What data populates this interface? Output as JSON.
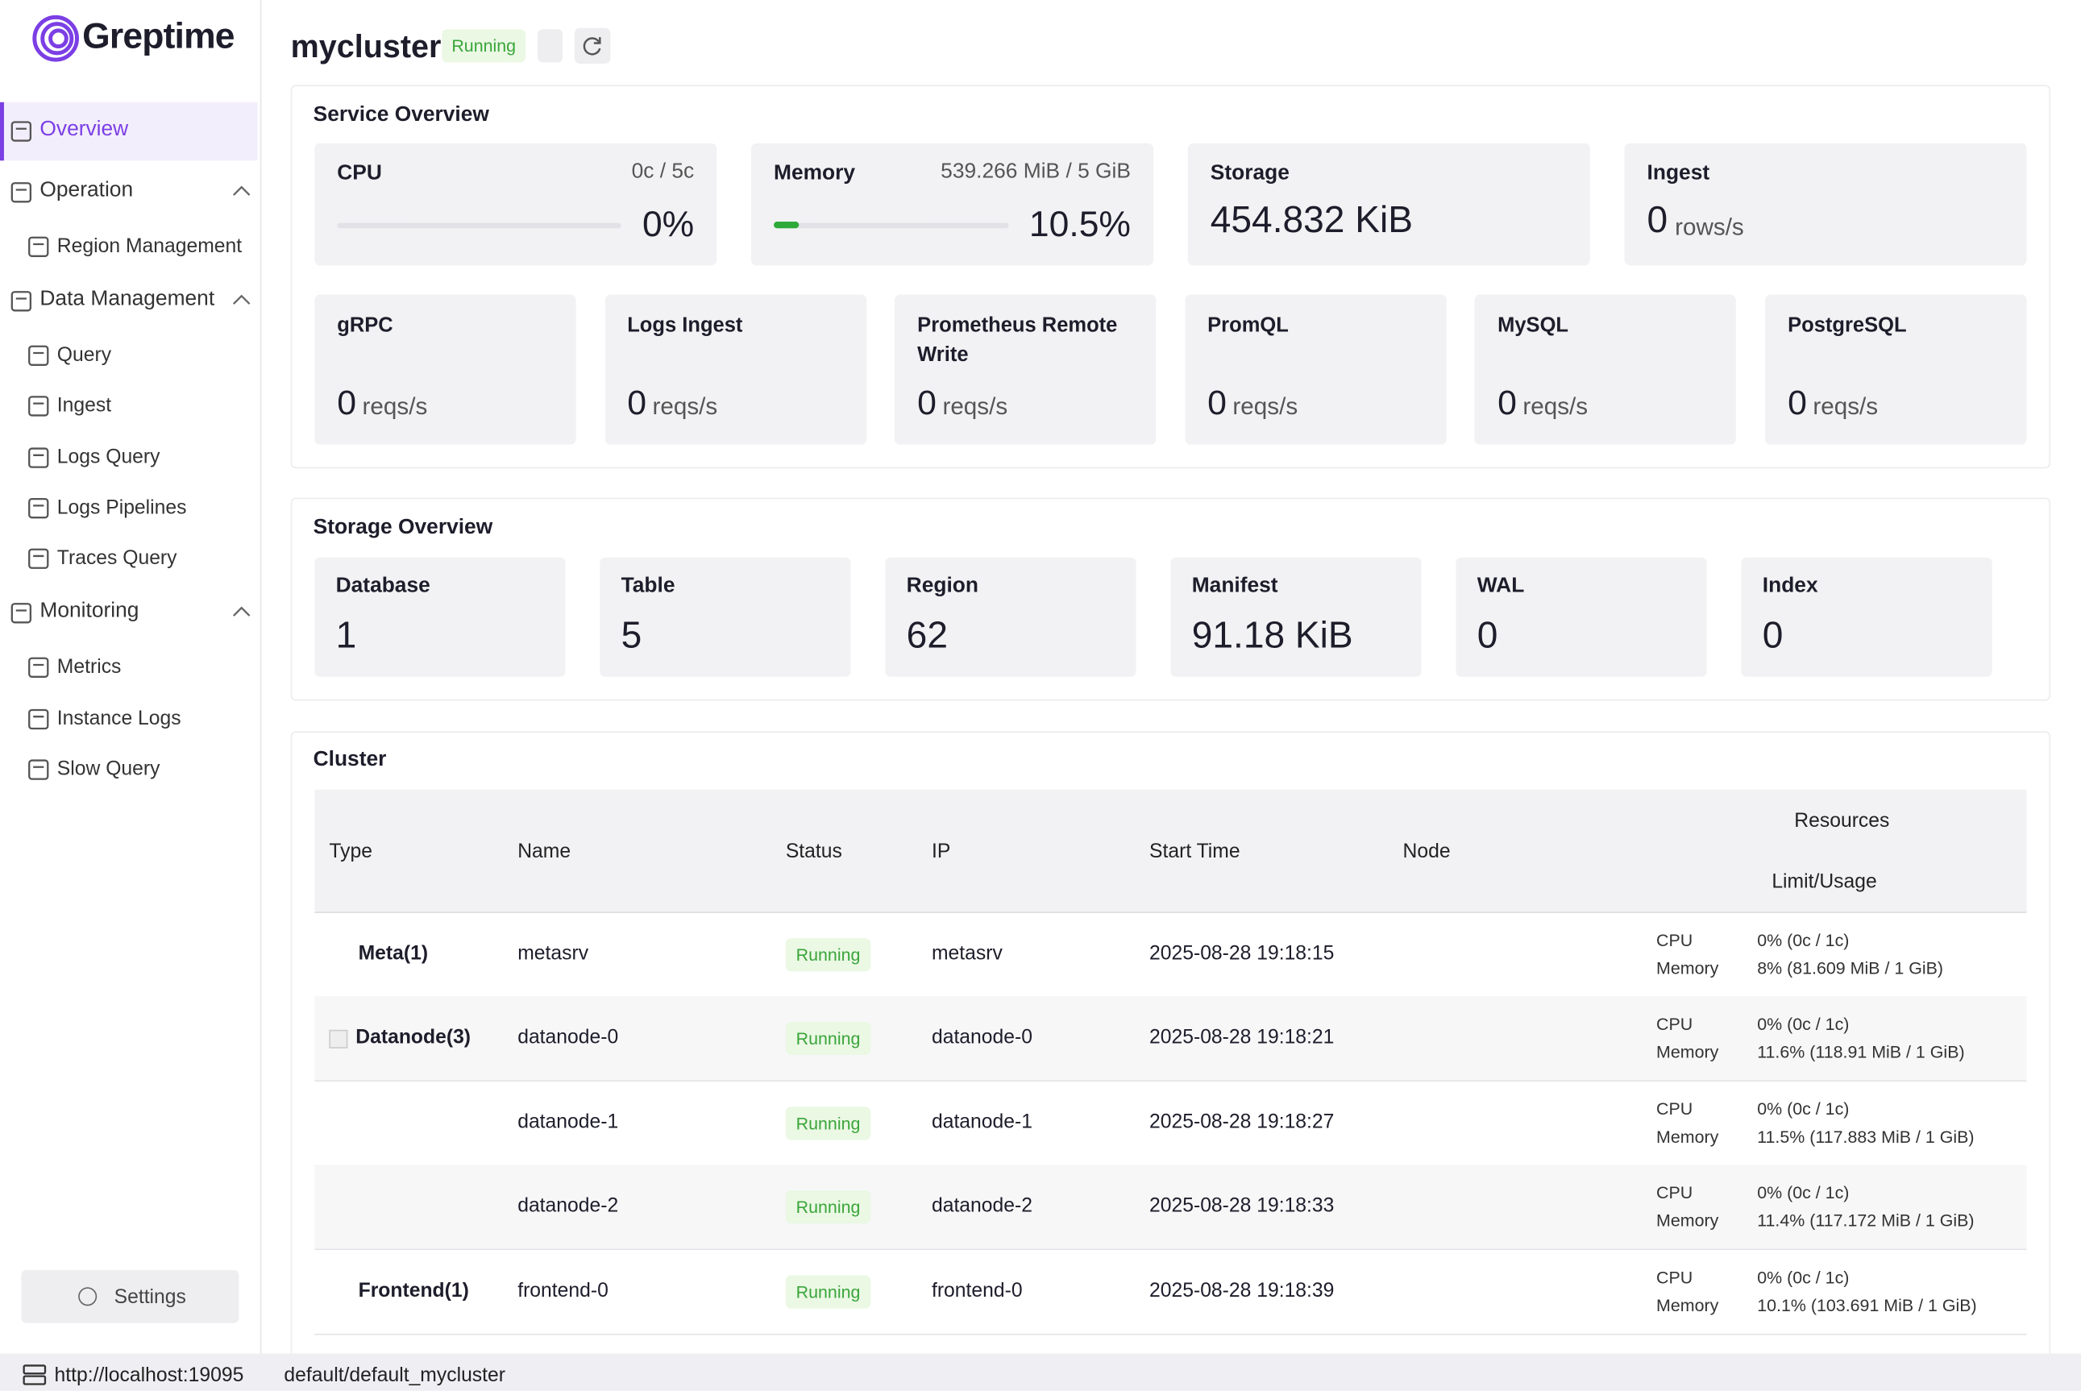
{
  "sidebar": {
    "logo": "Greptime",
    "nav": [
      {
        "label": "Overview",
        "active": true
      },
      {
        "label": "Operation",
        "children": [
          "Region Management"
        ]
      },
      {
        "label": "Data Management",
        "children": [
          "Query",
          "Ingest",
          "Logs Query",
          "Logs Pipelines",
          "Traces Query"
        ]
      },
      {
        "label": "Monitoring",
        "children": [
          "Metrics",
          "Instance Logs",
          "Slow Query"
        ]
      }
    ],
    "settings": "Settings"
  },
  "header": {
    "title": "mycluster",
    "status": "Running"
  },
  "service_overview": {
    "title": "Service Overview",
    "cards": [
      {
        "label": "CPU",
        "detail": "0c / 5c",
        "value": 0,
        "value_label": "0%"
      },
      {
        "label": "Memory",
        "detail": "539.266 MiB / 5 GiB",
        "value": 10.5,
        "value_label": "10.5%"
      },
      {
        "label": "Storage",
        "value": "454.832 KiB"
      },
      {
        "label": "Ingest",
        "value": "0",
        "unit": "rows/s"
      }
    ],
    "protocols": [
      {
        "label": "gRPC",
        "value": "0",
        "unit": "reqs/s"
      },
      {
        "label": "Logs Ingest",
        "value": "0",
        "unit": "reqs/s"
      },
      {
        "label": "Prometheus Remote Write",
        "value": "0",
        "unit": "reqs/s"
      },
      {
        "label": "PromQL",
        "value": "0",
        "unit": "reqs/s"
      },
      {
        "label": "MySQL",
        "value": "0",
        "unit": "reqs/s"
      },
      {
        "label": "PostgreSQL",
        "value": "0",
        "unit": "reqs/s"
      }
    ]
  },
  "storage_overview": {
    "title": "Storage Overview",
    "cards": [
      {
        "label": "Database",
        "value": "1"
      },
      {
        "label": "Table",
        "value": "5"
      },
      {
        "label": "Region",
        "value": "62"
      },
      {
        "label": "Manifest",
        "value": "91.18 KiB"
      },
      {
        "label": "WAL",
        "value": "0"
      },
      {
        "label": "Index",
        "value": "0"
      }
    ]
  },
  "cluster": {
    "title": "Cluster",
    "columns": [
      "Type",
      "Name",
      "Status",
      "IP",
      "Start Time",
      "Node"
    ],
    "resources": "Resources",
    "resources_sub": "Limit/Usage",
    "rows": [
      {
        "type": "Meta(1)",
        "name": "metasrv",
        "status": "Running",
        "ip": "metasrv",
        "start_time": "2025-08-28 19:18:15",
        "cpu_label": "CPU",
        "cpu": "0% (0c / 1c)",
        "memory_label": "Memory",
        "memory": "8% (81.609 MiB / 1 GiB)"
      },
      {
        "type": "Datanode(3)",
        "name": "datanode-0",
        "status": "Running",
        "ip": "datanode-0",
        "start_time": "2025-08-28 19:18:21",
        "cpu_label": "CPU",
        "cpu": "0% (0c / 1c)",
        "memory_label": "Memory",
        "memory": "11.6% (118.91 MiB / 1 GiB)"
      },
      {
        "name": "datanode-1",
        "status": "Running",
        "ip": "datanode-1",
        "start_time": "2025-08-28 19:18:27",
        "cpu_label": "CPU",
        "cpu": "0% (0c / 1c)",
        "memory_label": "Memory",
        "memory": "11.5% (117.883 MiB / 1 GiB)"
      },
      {
        "name": "datanode-2",
        "status": "Running",
        "ip": "datanode-2",
        "start_time": "2025-08-28 19:18:33",
        "cpu_label": "CPU",
        "cpu": "0% (0c / 1c)",
        "memory_label": "Memory",
        "memory": "11.4% (117.172 MiB / 1 GiB)"
      },
      {
        "type": "Frontend(1)",
        "name": "frontend-0",
        "status": "Running",
        "ip": "frontend-0",
        "start_time": "2025-08-28 19:18:39",
        "cpu_label": "CPU",
        "cpu": "0% (0c / 1c)",
        "memory_label": "Memory",
        "memory": "10.1% (103.691 MiB / 1 GiB)"
      }
    ]
  },
  "footer": {
    "url": "http://localhost:19095",
    "path": "default/default_mycluster"
  }
}
